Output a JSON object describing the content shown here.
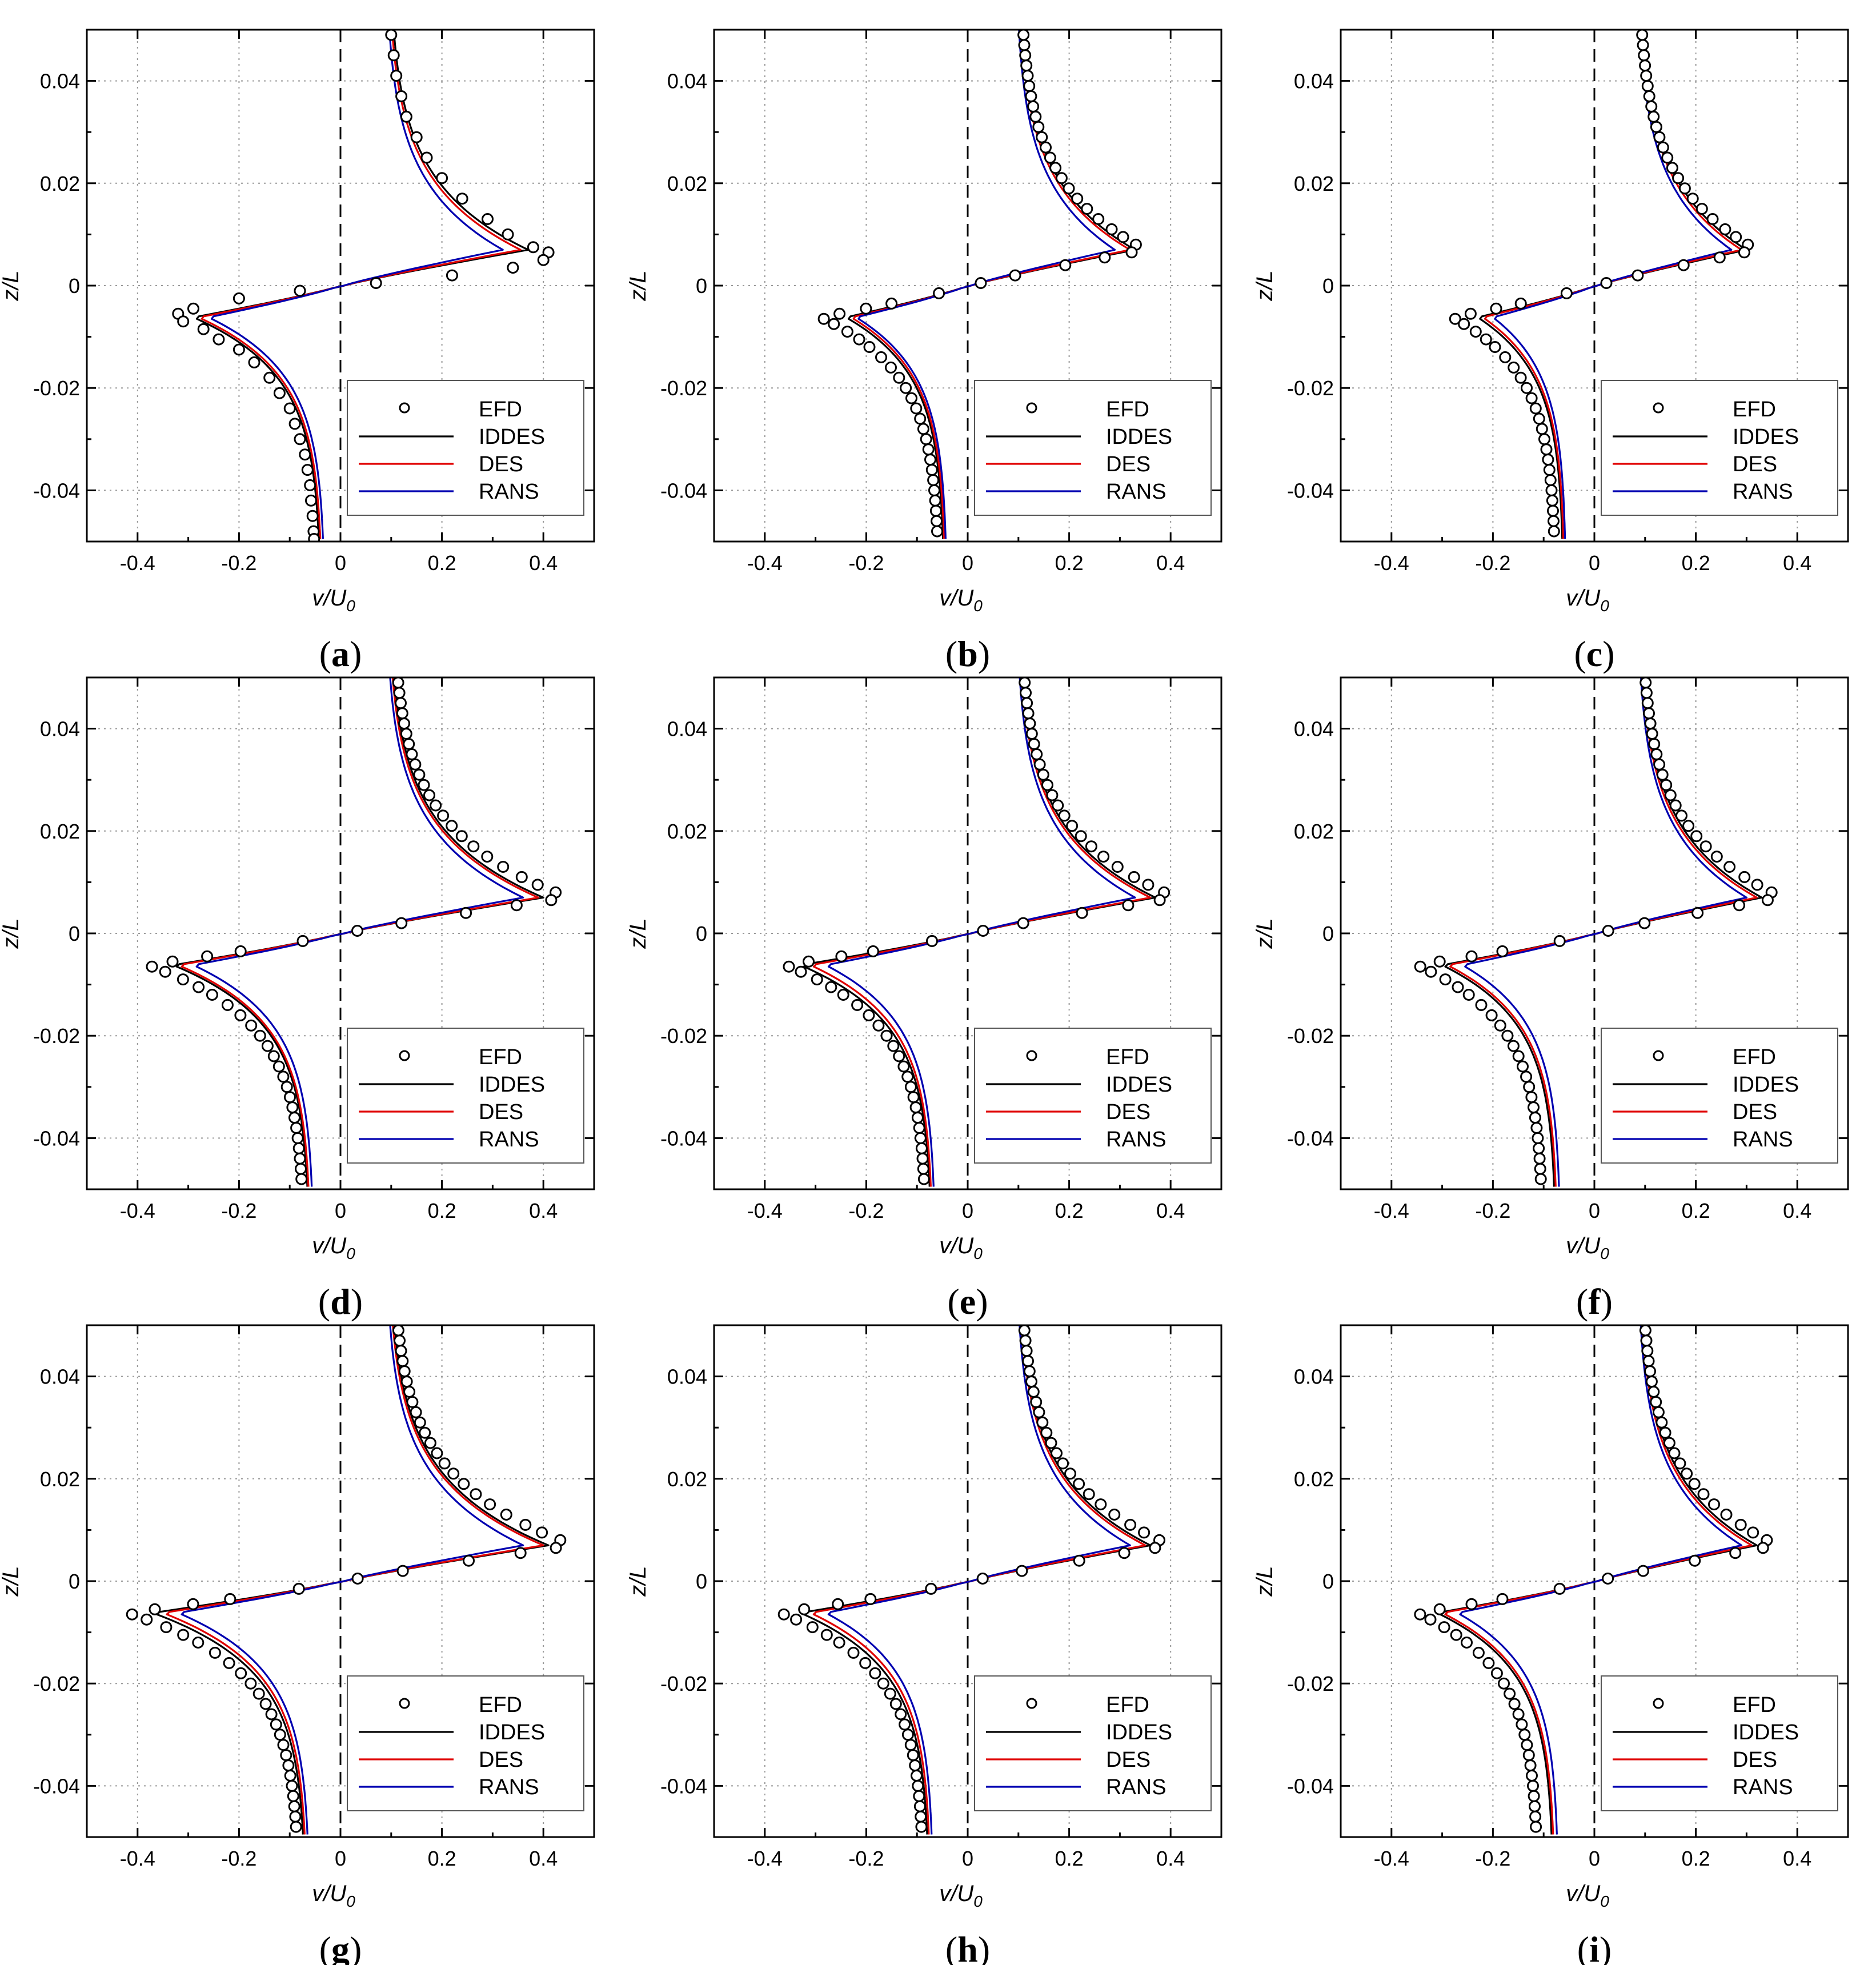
{
  "figure": {
    "x_axis_label": "v/U",
    "x_axis_label_sub": "0",
    "y_axis_label": "z/L",
    "x_ticks": [
      "-0.4",
      "-0.2",
      "0",
      "0.2",
      "0.4"
    ],
    "y_ticks": [
      "0.04",
      "0.02",
      "0",
      "-0.02",
      "-0.04"
    ]
  },
  "series_colors": {
    "EFD": "#000000",
    "IDDES": "#000000",
    "DES": "#e00000",
    "RANS": "#0000b0"
  },
  "legend": [
    "EFD",
    "IDDES",
    "DES",
    "RANS"
  ],
  "chart_data": [
    {
      "type": "line",
      "panel": "(a)",
      "caption_letter": "a",
      "caption_open": "(",
      "caption_close": ")",
      "xlabel": "v/U0",
      "ylabel": "z/L",
      "xlim": [
        -0.5,
        0.5
      ],
      "ylim": [
        -0.05,
        0.05
      ],
      "grid": true,
      "legend_position": "lower-right",
      "peak": {
        "pos": 0.37,
        "pos_z": 0.0065,
        "neg": -0.3,
        "neg_z": -0.0065,
        "far_top": 0.09,
        "far_bottom": -0.05,
        "efd_pos": 0.41,
        "efd_neg": -0.32
      },
      "series": [
        {
          "name": "EFD",
          "z": [
            0.049,
            0.045,
            0.041,
            0.037,
            0.033,
            0.029,
            0.025,
            0.021,
            0.017,
            0.013,
            0.01,
            0.0075,
            0.0065,
            0.005,
            0.0035,
            0.002,
            0.0005,
            -0.001,
            -0.0025,
            -0.0045,
            -0.0055,
            -0.007,
            -0.0085,
            -0.0105,
            -0.0125,
            -0.015,
            -0.018,
            -0.021,
            -0.024,
            -0.027,
            -0.03,
            -0.033,
            -0.036,
            -0.039,
            -0.042,
            -0.045,
            -0.048,
            -0.0495
          ],
          "v": [
            0.1,
            0.105,
            0.11,
            0.12,
            0.13,
            0.15,
            0.17,
            0.2,
            0.24,
            0.29,
            0.33,
            0.38,
            0.41,
            0.4,
            0.34,
            0.22,
            0.07,
            -0.08,
            -0.2,
            -0.29,
            -0.32,
            -0.31,
            -0.27,
            -0.24,
            -0.2,
            -0.17,
            -0.14,
            -0.12,
            -0.1,
            -0.09,
            -0.08,
            -0.07,
            -0.065,
            -0.06,
            -0.058,
            -0.055,
            -0.053,
            -0.052
          ]
        },
        {
          "name": "IDDES",
          "pos": 0.37,
          "neg": -0.29,
          "top": 0.095,
          "bottom": -0.038
        },
        {
          "name": "DES",
          "pos": 0.355,
          "neg": -0.28,
          "top": 0.092,
          "bottom": -0.035
        },
        {
          "name": "RANS",
          "pos": 0.32,
          "neg": -0.26,
          "top": 0.088,
          "bottom": -0.03
        }
      ]
    },
    {
      "type": "line",
      "panel": "(b)",
      "caption_letter": "b",
      "caption_open": "(",
      "caption_close": ")",
      "xlabel": "v/U0",
      "ylabel": "z/L",
      "xlim": [
        -0.5,
        0.5
      ],
      "ylim": [
        -0.05,
        0.05
      ],
      "grid": true,
      "legend_position": "lower-right",
      "series": [
        {
          "name": "EFD",
          "pos": 0.35,
          "neg": -0.29,
          "top": 0.1,
          "bottom": -0.055
        },
        {
          "name": "IDDES",
          "pos": 0.33,
          "neg": -0.24,
          "top": 0.1,
          "bottom": -0.045
        },
        {
          "name": "DES",
          "pos": 0.32,
          "neg": -0.23,
          "top": 0.097,
          "bottom": -0.043
        },
        {
          "name": "RANS",
          "pos": 0.29,
          "neg": -0.22,
          "top": 0.094,
          "bottom": -0.04
        }
      ]
    },
    {
      "type": "line",
      "panel": "(c)",
      "caption_letter": "c",
      "caption_open": "(",
      "caption_close": ")",
      "xlabel": "v/U0",
      "ylabel": "z/L",
      "xlim": [
        -0.5,
        0.5
      ],
      "ylim": [
        -0.05,
        0.05
      ],
      "grid": true,
      "legend_position": "lower-right",
      "series": [
        {
          "name": "EFD",
          "pos": 0.32,
          "neg": -0.28,
          "top": 0.085,
          "bottom": -0.075
        },
        {
          "name": "IDDES",
          "pos": 0.3,
          "neg": -0.23,
          "top": 0.09,
          "bottom": -0.06
        },
        {
          "name": "DES",
          "pos": 0.29,
          "neg": -0.22,
          "top": 0.087,
          "bottom": -0.058
        },
        {
          "name": "RANS",
          "pos": 0.27,
          "neg": -0.2,
          "top": 0.084,
          "bottom": -0.055
        }
      ]
    },
    {
      "type": "line",
      "panel": "(d)",
      "caption_letter": "d",
      "caption_open": "(",
      "caption_close": ")",
      "xlabel": "v/U0",
      "ylabel": "z/L",
      "xlim": [
        -0.5,
        0.5
      ],
      "ylim": [
        -0.05,
        0.05
      ],
      "grid": true,
      "legend_position": "lower-right",
      "series": [
        {
          "name": "EFD",
          "pos": 0.45,
          "neg": -0.38,
          "top": 0.1,
          "bottom": -0.07
        },
        {
          "name": "IDDES",
          "pos": 0.4,
          "neg": -0.33,
          "top": 0.095,
          "bottom": -0.06
        },
        {
          "name": "DES",
          "pos": 0.39,
          "neg": -0.32,
          "top": 0.092,
          "bottom": -0.058
        },
        {
          "name": "RANS",
          "pos": 0.36,
          "neg": -0.29,
          "top": 0.088,
          "bottom": -0.052
        }
      ]
    },
    {
      "type": "line",
      "panel": "(e)",
      "caption_letter": "e",
      "caption_open": "(",
      "caption_close": ")",
      "xlabel": "v/U0",
      "ylabel": "z/L",
      "xlim": [
        -0.5,
        0.5
      ],
      "ylim": [
        -0.05,
        0.05
      ],
      "grid": true,
      "legend_position": "lower-right",
      "series": [
        {
          "name": "EFD",
          "pos": 0.41,
          "neg": -0.36,
          "top": 0.1,
          "bottom": -0.08
        },
        {
          "name": "IDDES",
          "pos": 0.37,
          "neg": -0.33,
          "top": 0.1,
          "bottom": -0.07
        },
        {
          "name": "DES",
          "pos": 0.36,
          "neg": -0.31,
          "top": 0.097,
          "bottom": -0.068
        },
        {
          "name": "RANS",
          "pos": 0.33,
          "neg": -0.28,
          "top": 0.094,
          "bottom": -0.063
        }
      ]
    },
    {
      "type": "line",
      "panel": "(f)",
      "caption_letter": "f",
      "caption_open": "(",
      "caption_close": ")",
      "xlabel": "v/U0",
      "ylabel": "z/L",
      "xlim": [
        -0.5,
        0.5
      ],
      "ylim": [
        -0.05,
        0.05
      ],
      "grid": true,
      "legend_position": "lower-right",
      "series": [
        {
          "name": "EFD",
          "pos": 0.37,
          "neg": -0.35,
          "top": 0.09,
          "bottom": -0.1
        },
        {
          "name": "IDDES",
          "pos": 0.33,
          "neg": -0.3,
          "top": 0.09,
          "bottom": -0.075
        },
        {
          "name": "DES",
          "pos": 0.32,
          "neg": -0.29,
          "top": 0.087,
          "bottom": -0.072
        },
        {
          "name": "RANS",
          "pos": 0.3,
          "neg": -0.26,
          "top": 0.084,
          "bottom": -0.066
        }
      ]
    },
    {
      "type": "line",
      "panel": "(g)",
      "caption_letter": "g",
      "caption_open": "(",
      "caption_close": ")",
      "xlabel": "v/U0",
      "ylabel": "z/L",
      "xlim": [
        -0.5,
        0.5
      ],
      "ylim": [
        -0.05,
        0.05
      ],
      "grid": true,
      "legend_position": "lower-right",
      "series": [
        {
          "name": "EFD",
          "pos": 0.46,
          "neg": -0.42,
          "top": 0.1,
          "bottom": -0.08
        },
        {
          "name": "IDDES",
          "pos": 0.41,
          "neg": -0.37,
          "top": 0.095,
          "bottom": -0.068
        },
        {
          "name": "DES",
          "pos": 0.4,
          "neg": -0.35,
          "top": 0.092,
          "bottom": -0.065
        },
        {
          "name": "RANS",
          "pos": 0.36,
          "neg": -0.32,
          "top": 0.088,
          "bottom": -0.06
        }
      ]
    },
    {
      "type": "line",
      "panel": "(h)",
      "caption_letter": "h",
      "caption_open": "(",
      "caption_close": ")",
      "xlabel": "v/U0",
      "ylabel": "z/L",
      "xlim": [
        -0.5,
        0.5
      ],
      "ylim": [
        -0.05,
        0.05
      ],
      "grid": true,
      "legend_position": "lower-right",
      "series": [
        {
          "name": "EFD",
          "pos": 0.4,
          "neg": -0.37,
          "top": 0.1,
          "bottom": -0.085
        },
        {
          "name": "IDDES",
          "pos": 0.36,
          "neg": -0.33,
          "top": 0.1,
          "bottom": -0.075
        },
        {
          "name": "DES",
          "pos": 0.35,
          "neg": -0.31,
          "top": 0.097,
          "bottom": -0.072
        },
        {
          "name": "RANS",
          "pos": 0.32,
          "neg": -0.28,
          "top": 0.094,
          "bottom": -0.067
        }
      ]
    },
    {
      "type": "line",
      "panel": "(i)",
      "caption_letter": "i",
      "caption_open": "(",
      "caption_close": ")",
      "xlabel": "v/U0",
      "ylabel": "z/L",
      "xlim": [
        -0.5,
        0.5
      ],
      "ylim": [
        -0.05,
        0.05
      ],
      "grid": true,
      "legend_position": "lower-right",
      "series": [
        {
          "name": "EFD",
          "pos": 0.36,
          "neg": -0.35,
          "top": 0.09,
          "bottom": -0.11
        },
        {
          "name": "IDDES",
          "pos": 0.32,
          "neg": -0.31,
          "top": 0.09,
          "bottom": -0.08
        },
        {
          "name": "DES",
          "pos": 0.31,
          "neg": -0.3,
          "top": 0.087,
          "bottom": -0.077
        },
        {
          "name": "RANS",
          "pos": 0.29,
          "neg": -0.27,
          "top": 0.084,
          "bottom": -0.07
        }
      ]
    }
  ]
}
